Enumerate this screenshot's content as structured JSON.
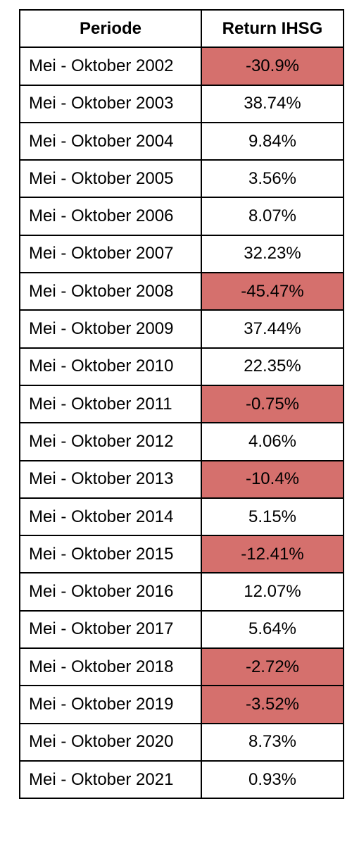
{
  "table": {
    "headers": [
      "Periode",
      "Return IHSG"
    ],
    "negative_color": "#d5706d",
    "rows": [
      {
        "period": "Mei - Oktober 2002",
        "return": "-30.9%",
        "negative": true
      },
      {
        "period": "Mei - Oktober 2003",
        "return": "38.74%",
        "negative": false
      },
      {
        "period": "Mei - Oktober 2004",
        "return": "9.84%",
        "negative": false
      },
      {
        "period": "Mei - Oktober 2005",
        "return": "3.56%",
        "negative": false
      },
      {
        "period": "Mei - Oktober 2006",
        "return": "8.07%",
        "negative": false
      },
      {
        "period": "Mei - Oktober 2007",
        "return": "32.23%",
        "negative": false
      },
      {
        "period": "Mei - Oktober 2008",
        "return": "-45.47%",
        "negative": true
      },
      {
        "period": "Mei - Oktober 2009",
        "return": "37.44%",
        "negative": false
      },
      {
        "period": "Mei - Oktober 2010",
        "return": "22.35%",
        "negative": false
      },
      {
        "period": "Mei - Oktober 2011",
        "return": "-0.75%",
        "negative": true
      },
      {
        "period": "Mei - Oktober 2012",
        "return": "4.06%",
        "negative": false
      },
      {
        "period": "Mei - Oktober 2013",
        "return": "-10.4%",
        "negative": true
      },
      {
        "period": "Mei - Oktober 2014",
        "return": "5.15%",
        "negative": false
      },
      {
        "period": "Mei - Oktober 2015",
        "return": "-12.41%",
        "negative": true
      },
      {
        "period": "Mei - Oktober 2016",
        "return": "12.07%",
        "negative": false
      },
      {
        "period": "Mei - Oktober 2017",
        "return": "5.64%",
        "negative": false
      },
      {
        "period": "Mei - Oktober 2018",
        "return": "-2.72%",
        "negative": true
      },
      {
        "period": "Mei - Oktober 2019",
        "return": "-3.52%",
        "negative": true
      },
      {
        "period": "Mei - Oktober 2020",
        "return": "8.73%",
        "negative": false
      },
      {
        "period": "Mei - Oktober 2021",
        "return": "0.93%",
        "negative": false
      }
    ]
  }
}
